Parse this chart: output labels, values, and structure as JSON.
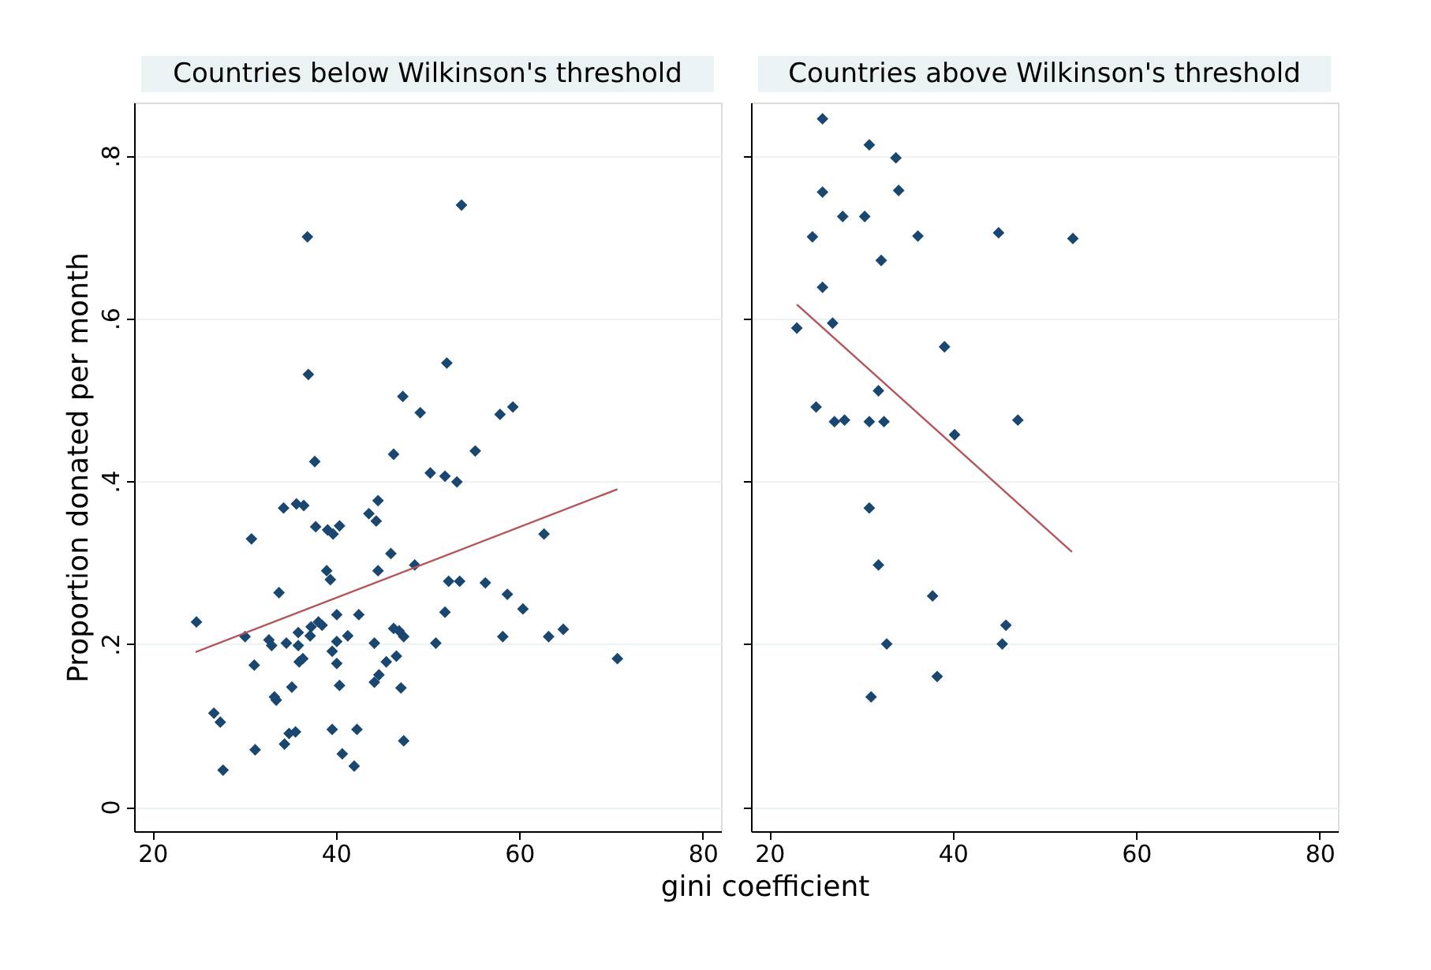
{
  "chart_data": [
    {
      "type": "scatter",
      "title": "Countries below Wilkinson's threshold",
      "xlabel": "gini coefficient",
      "ylabel": "Proportion donated per month",
      "xlim": [
        18,
        82
      ],
      "xticks": [
        20,
        40,
        60,
        80
      ],
      "ylim": [
        -0.03,
        0.865
      ],
      "yticks": [
        0,
        {
          "value": 0.2,
          "label": ".2"
        },
        {
          "value": 0.4,
          "label": ".4"
        },
        {
          "value": 0.6,
          "label": ".6"
        },
        {
          "value": 0.8,
          "label": ".8"
        }
      ],
      "grid": "y",
      "series": [
        {
          "marker": "diamond",
          "color": "#1a476f",
          "x": [
            24.8,
            26.7,
            27.4,
            27.7,
            30.1,
            30.8,
            31.1,
            31.2,
            32.7,
            33.0,
            33.3,
            33.5,
            33.8,
            34.3,
            34.4,
            34.6,
            34.9,
            35.2,
            35.6,
            35.7,
            35.9,
            35.9,
            36.0,
            36.4,
            36.5,
            36.9,
            37.0,
            37.2,
            37.3,
            37.7,
            37.8,
            38.1,
            38.5,
            39.0,
            39.1,
            39.4,
            39.6,
            39.6,
            39.7,
            40.1,
            40.1,
            40.1,
            40.4,
            40.4,
            40.7,
            41.3,
            42.0,
            42.3,
            42.5,
            43.6,
            44.2,
            44.2,
            44.4,
            44.6,
            44.6,
            44.7,
            45.5,
            46.0,
            46.3,
            46.3,
            46.6,
            46.9,
            47.1,
            47.3,
            47.4,
            47.4,
            48.6,
            49.2,
            50.3,
            50.9,
            51.9,
            51.9,
            52.1,
            52.3,
            53.2,
            53.5,
            53.7,
            55.2,
            56.3,
            57.9,
            58.2,
            58.7,
            59.3,
            60.4,
            62.7,
            63.2,
            64.8,
            70.7
          ],
          "values": [
            0.227,
            0.115,
            0.104,
            0.045,
            0.209,
            0.329,
            0.174,
            0.07,
            0.205,
            0.198,
            0.135,
            0.131,
            0.263,
            0.367,
            0.077,
            0.201,
            0.09,
            0.147,
            0.092,
            0.372,
            0.198,
            0.214,
            0.178,
            0.182,
            0.37,
            0.7,
            0.531,
            0.21,
            0.221,
            0.424,
            0.344,
            0.227,
            0.223,
            0.29,
            0.34,
            0.279,
            0.191,
            0.095,
            0.335,
            0.236,
            0.203,
            0.176,
            0.345,
            0.149,
            0.065,
            0.21,
            0.05,
            0.095,
            0.236,
            0.36,
            0.201,
            0.153,
            0.351,
            0.376,
            0.29,
            0.162,
            0.178,
            0.311,
            0.433,
            0.219,
            0.185,
            0.216,
            0.146,
            0.504,
            0.209,
            0.081,
            0.297,
            0.484,
            0.41,
            0.201,
            0.406,
            0.239,
            0.545,
            0.277,
            0.399,
            0.277,
            0.739,
            0.437,
            0.275,
            0.482,
            0.209,
            0.261,
            0.491,
            0.243,
            0.335,
            0.209,
            0.218,
            0.182
          ]
        },
        {
          "type": "line",
          "color": "#b5545c",
          "x": [
            24.7,
            70.7
          ],
          "values": [
            0.19,
            0.39
          ]
        }
      ]
    },
    {
      "type": "scatter",
      "title": "Countries above Wilkinson's threshold",
      "xlim": [
        18,
        82
      ],
      "xticks": [
        20,
        40,
        60,
        80
      ],
      "ylim": [
        -0.03,
        0.865
      ],
      "yticks": [
        0,
        0.2,
        0.4,
        0.6,
        0.8
      ],
      "tick_labels": "x",
      "grid": "y",
      "series": [
        {
          "marker": "diamond",
          "color": "#1a476f",
          "x": [
            25.8,
            23.0,
            24.7,
            25.1,
            25.8,
            25.8,
            26.9,
            27.1,
            28.0,
            28.2,
            30.4,
            30.9,
            30.9,
            30.9,
            31.1,
            31.9,
            31.9,
            32.2,
            32.5,
            32.8,
            33.8,
            34.1,
            36.2,
            37.8,
            38.3,
            39.1,
            40.2,
            45.0,
            45.4,
            45.8,
            47.1,
            53.1
          ],
          "values": [
            0.845,
            0.588,
            0.7,
            0.491,
            0.755,
            0.638,
            0.594,
            0.473,
            0.725,
            0.475,
            0.725,
            0.813,
            0.473,
            0.367,
            0.135,
            0.511,
            0.297,
            0.671,
            0.473,
            0.2,
            0.797,
            0.757,
            0.701,
            0.259,
            0.16,
            0.565,
            0.457,
            0.705,
            0.2,
            0.223,
            0.475,
            0.698
          ]
        },
        {
          "type": "line",
          "color": "#b5545c",
          "x": [
            23.0,
            53.0
          ],
          "values": [
            0.617,
            0.313
          ]
        }
      ]
    }
  ]
}
